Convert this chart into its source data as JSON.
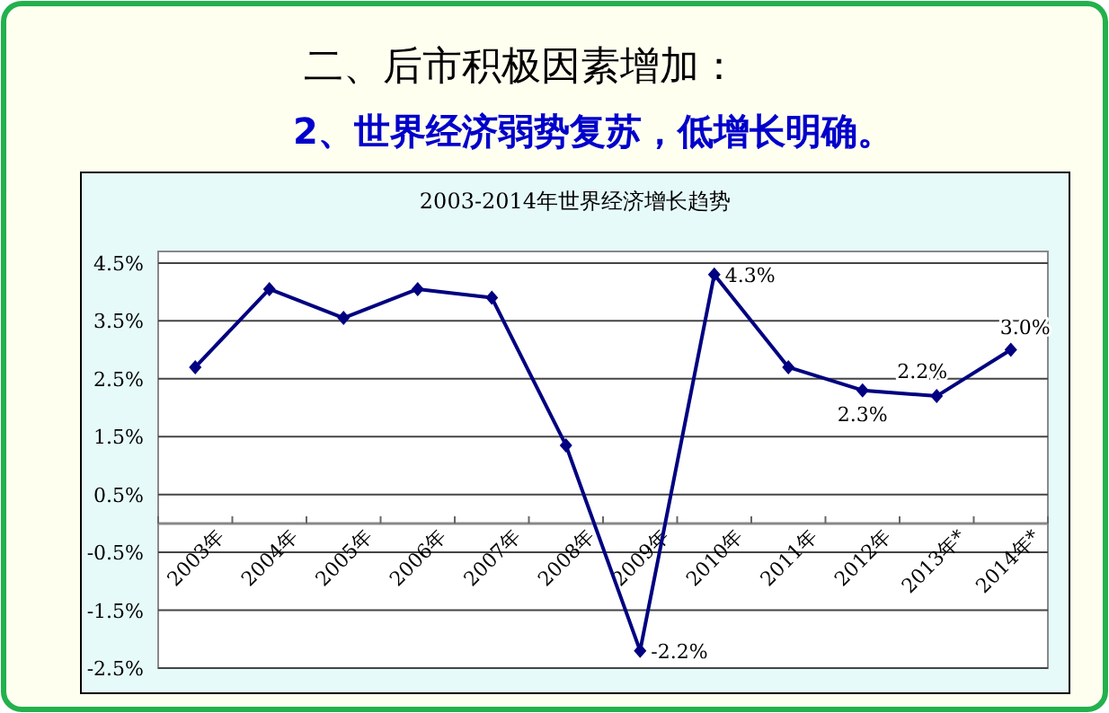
{
  "chart_data": {
    "type": "line",
    "title": "2003-2014年世界经济增长趋势",
    "annotations": [
      "二、后市积极因素增加：",
      "2、世界经济弱势复苏，低增长明确。"
    ],
    "categories": [
      "2003年",
      "2004年",
      "2005年",
      "2006年",
      "2007年",
      "2008年",
      "2009年",
      "2010年",
      "2011年",
      "2012年",
      "2013年*",
      "2014年*"
    ],
    "series": [
      {
        "color": "#000080",
        "values": [
          2.7,
          4.05,
          3.55,
          4.05,
          3.9,
          1.35,
          -2.2,
          4.3,
          2.7,
          2.3,
          2.2,
          3.0
        ],
        "value_labels": [
          null,
          null,
          null,
          null,
          null,
          null,
          "-2.2%",
          "4.3%",
          null,
          "2.3%",
          "2.2%",
          "3.0%"
        ]
      }
    ],
    "ylim": [
      -2.5,
      4.5
    ],
    "yticks": [
      {
        "value": -2.5,
        "label": "-2.5%"
      },
      {
        "value": -1.5,
        "label": "-1.5%"
      },
      {
        "value": -0.5,
        "label": "-0.5%"
      },
      {
        "value": 0.5,
        "label": "0.5%"
      },
      {
        "value": 1.5,
        "label": "1.5%"
      },
      {
        "value": 2.5,
        "label": "2.5%"
      },
      {
        "value": 3.5,
        "label": "3.5%"
      },
      {
        "value": 4.5,
        "label": "4.5%"
      }
    ],
    "grid": "y",
    "marker": "diamond",
    "line_style": "solid"
  }
}
